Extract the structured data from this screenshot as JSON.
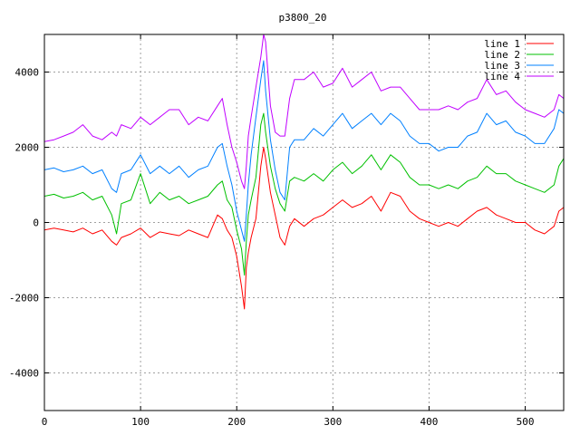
{
  "chart_data": {
    "type": "line",
    "title": "p3800_20",
    "xlabel": "",
    "ylabel": "",
    "xlim": [
      0,
      540
    ],
    "ylim": [
      -5000,
      5000
    ],
    "x_ticks": [
      "0",
      "100",
      "200",
      "300",
      "400",
      "500"
    ],
    "y_ticks": [
      "-4000",
      "-2000",
      "0",
      "2000",
      "4000"
    ],
    "grid": true,
    "legend_position": "top-right",
    "series": [
      {
        "name": "line 1",
        "color": "#ff0000",
        "x": [
          0,
          10,
          20,
          30,
          40,
          50,
          60,
          70,
          75,
          80,
          90,
          100,
          110,
          120,
          130,
          140,
          150,
          160,
          170,
          180,
          185,
          190,
          195,
          200,
          205,
          208,
          210,
          212,
          215,
          220,
          225,
          228,
          230,
          235,
          240,
          245,
          250,
          255,
          260,
          270,
          280,
          290,
          300,
          310,
          320,
          330,
          340,
          350,
          360,
          370,
          380,
          390,
          400,
          410,
          420,
          430,
          440,
          450,
          460,
          470,
          480,
          490,
          500,
          510,
          520,
          530,
          535,
          540
        ],
        "values": [
          -200,
          -150,
          -200,
          -250,
          -150,
          -300,
          -200,
          -500,
          -600,
          -400,
          -300,
          -150,
          -400,
          -250,
          -300,
          -350,
          -200,
          -300,
          -400,
          200,
          100,
          -200,
          -400,
          -900,
          -1700,
          -2300,
          -1200,
          -800,
          -400,
          100,
          1500,
          2000,
          1700,
          800,
          200,
          -400,
          -600,
          -100,
          100,
          -100,
          100,
          200,
          400,
          600,
          400,
          500,
          700,
          300,
          800,
          700,
          300,
          100,
          0,
          -100,
          0,
          -100,
          100,
          300,
          400,
          200,
          100,
          0,
          0,
          -200,
          -300,
          -100,
          300,
          400
        ]
      },
      {
        "name": "line 2",
        "color": "#00c000",
        "x": [
          0,
          10,
          20,
          30,
          40,
          50,
          60,
          70,
          75,
          80,
          90,
          100,
          110,
          120,
          130,
          140,
          150,
          160,
          170,
          180,
          185,
          190,
          195,
          200,
          205,
          208,
          210,
          212,
          215,
          220,
          225,
          228,
          230,
          235,
          240,
          245,
          250,
          255,
          260,
          270,
          280,
          290,
          300,
          310,
          320,
          330,
          340,
          350,
          360,
          370,
          380,
          390,
          400,
          410,
          420,
          430,
          440,
          450,
          460,
          470,
          480,
          490,
          500,
          510,
          520,
          530,
          535,
          540
        ],
        "values": [
          700,
          750,
          650,
          700,
          800,
          600,
          700,
          200,
          -300,
          500,
          600,
          1300,
          500,
          800,
          600,
          700,
          500,
          600,
          700,
          1000,
          1100,
          600,
          400,
          -200,
          -700,
          -1400,
          -500,
          200,
          600,
          1200,
          2600,
          2900,
          2400,
          1500,
          900,
          500,
          300,
          1100,
          1200,
          1100,
          1300,
          1100,
          1400,
          1600,
          1300,
          1500,
          1800,
          1400,
          1800,
          1600,
          1200,
          1000,
          1000,
          900,
          1000,
          900,
          1100,
          1200,
          1500,
          1300,
          1300,
          1100,
          1000,
          900,
          800,
          1000,
          1500,
          1700
        ]
      },
      {
        "name": "line 3",
        "color": "#0080ff",
        "x": [
          0,
          10,
          20,
          30,
          40,
          50,
          60,
          70,
          75,
          80,
          90,
          100,
          110,
          120,
          130,
          140,
          150,
          160,
          170,
          180,
          185,
          190,
          195,
          200,
          205,
          208,
          210,
          212,
          215,
          220,
          225,
          228,
          230,
          235,
          240,
          245,
          250,
          255,
          260,
          270,
          280,
          290,
          300,
          310,
          320,
          330,
          340,
          350,
          360,
          370,
          380,
          390,
          400,
          410,
          420,
          430,
          440,
          450,
          460,
          470,
          480,
          490,
          500,
          510,
          520,
          530,
          535,
          540
        ],
        "values": [
          1400,
          1450,
          1350,
          1400,
          1500,
          1300,
          1400,
          900,
          800,
          1300,
          1400,
          1800,
          1300,
          1500,
          1300,
          1500,
          1200,
          1400,
          1500,
          2000,
          2100,
          1500,
          1000,
          300,
          -200,
          -500,
          200,
          1000,
          1800,
          2800,
          3800,
          4300,
          3500,
          2200,
          1400,
          800,
          600,
          2000,
          2200,
          2200,
          2500,
          2300,
          2600,
          2900,
          2500,
          2700,
          2900,
          2600,
          2900,
          2700,
          2300,
          2100,
          2100,
          1900,
          2000,
          2000,
          2300,
          2400,
          2900,
          2600,
          2700,
          2400,
          2300,
          2100,
          2100,
          2500,
          3000,
          2900
        ]
      },
      {
        "name": "line 4",
        "color": "#c000ff",
        "x": [
          0,
          10,
          20,
          30,
          40,
          50,
          60,
          70,
          75,
          80,
          90,
          100,
          110,
          120,
          130,
          140,
          150,
          160,
          170,
          180,
          185,
          190,
          195,
          200,
          205,
          208,
          210,
          212,
          215,
          220,
          225,
          228,
          230,
          235,
          240,
          245,
          250,
          255,
          260,
          270,
          280,
          290,
          300,
          310,
          320,
          330,
          340,
          350,
          360,
          370,
          380,
          390,
          400,
          410,
          420,
          430,
          440,
          450,
          460,
          470,
          480,
          490,
          500,
          510,
          520,
          530,
          535,
          540
        ],
        "values": [
          2150,
          2200,
          2300,
          2400,
          2600,
          2300,
          2200,
          2400,
          2300,
          2600,
          2500,
          2800,
          2600,
          2800,
          3000,
          3000,
          2600,
          2800,
          2700,
          3100,
          3300,
          2600,
          2000,
          1600,
          1100,
          900,
          1500,
          2300,
          2800,
          3600,
          4400,
          5000,
          4800,
          3100,
          2400,
          2300,
          2300,
          3300,
          3800,
          3800,
          4000,
          3600,
          3700,
          4100,
          3600,
          3800,
          4000,
          3500,
          3600,
          3600,
          3300,
          3000,
          3000,
          3000,
          3100,
          3000,
          3200,
          3300,
          3800,
          3400,
          3500,
          3200,
          3000,
          2900,
          2800,
          3000,
          3400,
          3300
        ]
      }
    ]
  }
}
